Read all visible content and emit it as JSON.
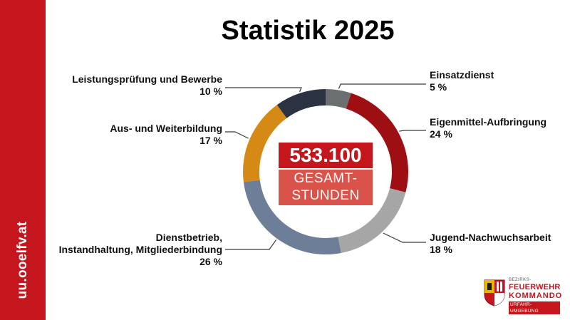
{
  "sidebar": {
    "url": "uu.ooelfv.at"
  },
  "title": "Statistik 2025",
  "center": {
    "value": "533.100",
    "label_line1": "GESAMT-",
    "label_line2": "STUNDEN"
  },
  "logo": {
    "line1": "BEZIRKS-",
    "line2": "FEUERWEHR",
    "line3": "KOMMANDO",
    "line4": "URFAHR-UMGEBUNG"
  },
  "colors": {
    "brand_red": "#c4161c",
    "center_label_bg": "#d9534a",
    "leader_line": "#3a3a3a"
  },
  "chart_data": {
    "type": "pie",
    "title": "Statistik 2025",
    "series": [
      {
        "name_lines": [
          "Einsatzdienst"
        ],
        "value": 5,
        "value_label": "5 %",
        "color": "#6b6f70"
      },
      {
        "name_lines": [
          "Eigenmittel-Aufbringung"
        ],
        "value": 24,
        "value_label": "24 %",
        "color": "#9e0f14"
      },
      {
        "name_lines": [
          "Jugend-Nachwuchsarbeit"
        ],
        "value": 18,
        "value_label": "18 %",
        "color": "#a6a6a6"
      },
      {
        "name_lines": [
          "Dienstbetrieb,",
          "Instandhaltung, Mitgliederbindung"
        ],
        "value": 26,
        "value_label": "26 %",
        "color": "#6d7e98"
      },
      {
        "name_lines": [
          "Aus- und Weiterbildung"
        ],
        "value": 17,
        "value_label": "17 %",
        "color": "#d68a16"
      },
      {
        "name_lines": [
          "Leistungsprüfung und Bewerbe"
        ],
        "value": 10,
        "value_label": "10 %",
        "color": "#2b3342"
      }
    ]
  }
}
